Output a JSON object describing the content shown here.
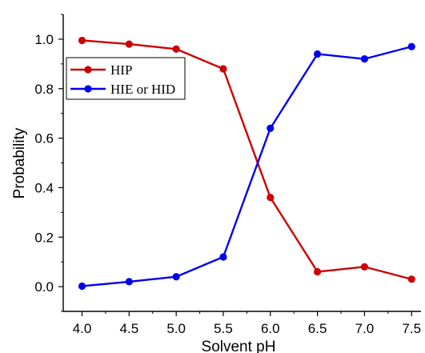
{
  "chart_data": {
    "type": "line",
    "xlabel": "Solvent pH",
    "ylabel": "Probability",
    "x": [
      4.0,
      4.5,
      5.0,
      5.5,
      6.0,
      6.5,
      7.0,
      7.5
    ],
    "x_tick_labels": [
      "4.0",
      "4.5",
      "5.0",
      "5.5",
      "6.0",
      "6.5",
      "7.0",
      "7.5"
    ],
    "y_ticks": [
      0.0,
      0.2,
      0.4,
      0.6,
      0.8,
      1.0
    ],
    "y_tick_labels": [
      "0.0",
      "0.2",
      "0.4",
      "0.6",
      "0.8",
      "1.0"
    ],
    "xlim": [
      3.8,
      7.6
    ],
    "ylim": [
      -0.1,
      1.1
    ],
    "grid": false,
    "legend_position": "upper-left",
    "series": [
      {
        "name": "HIP",
        "color": "#cc0000",
        "values": [
          0.995,
          0.98,
          0.96,
          0.88,
          0.36,
          0.06,
          0.08,
          0.03
        ]
      },
      {
        "name": "HIE or HID",
        "color": "#0000ee",
        "values": [
          0.002,
          0.02,
          0.04,
          0.12,
          0.64,
          0.94,
          0.92,
          0.97
        ]
      }
    ]
  }
}
